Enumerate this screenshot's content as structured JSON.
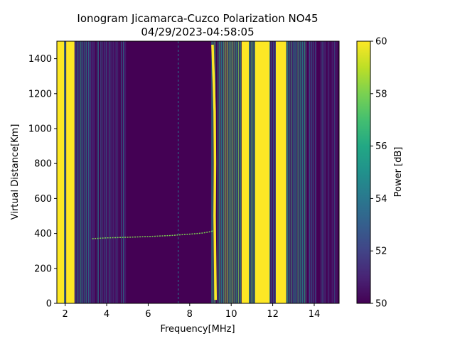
{
  "chart_data": {
    "type": "heatmap",
    "title_line1": "Ionogram Jicamarca-Cuzco Polarization NO45",
    "title_line2": "04/29/2023-04:58:05",
    "xlabel": "Frequency[MHz]",
    "ylabel": "Virtual Distance[Km]",
    "xlim": [
      1.6,
      15.2
    ],
    "ylim": [
      0,
      1500
    ],
    "xticks": [
      2,
      4,
      6,
      8,
      10,
      12,
      14
    ],
    "yticks": [
      0,
      200,
      400,
      600,
      800,
      1000,
      1200,
      1400
    ],
    "colorbar": {
      "label": "Power [dB]",
      "colormap": "viridis",
      "range": [
        50,
        60
      ],
      "ticks": [
        50,
        52,
        54,
        56,
        58,
        60
      ]
    },
    "background_level_db": 50,
    "interference_bands": [
      {
        "f_start": 1.6,
        "f_end": 1.95,
        "level_db": 60,
        "pattern": "solid"
      },
      {
        "f_start": 1.95,
        "f_end": 2.05,
        "level_db": 55,
        "pattern": "striped"
      },
      {
        "f_start": 2.05,
        "f_end": 2.45,
        "level_db": 60,
        "pattern": "solid"
      },
      {
        "f_start": 2.45,
        "f_end": 3.2,
        "level_db": 54,
        "pattern": "striped"
      },
      {
        "f_start": 3.2,
        "f_end": 4.9,
        "level_db": 52,
        "pattern": "striped"
      },
      {
        "f_start": 9.05,
        "f_end": 9.25,
        "level_db": 56,
        "pattern": "striped"
      },
      {
        "f_start": 9.35,
        "f_end": 10.5,
        "level_db": 57,
        "pattern": "striped"
      },
      {
        "f_start": 10.5,
        "f_end": 10.85,
        "level_db": 60,
        "pattern": "solid"
      },
      {
        "f_start": 10.85,
        "f_end": 11.15,
        "level_db": 55,
        "pattern": "striped"
      },
      {
        "f_start": 11.15,
        "f_end": 11.85,
        "level_db": 60,
        "pattern": "solid"
      },
      {
        "f_start": 11.85,
        "f_end": 12.15,
        "level_db": 54,
        "pattern": "striped"
      },
      {
        "f_start": 12.15,
        "f_end": 12.65,
        "level_db": 60,
        "pattern": "solid"
      },
      {
        "f_start": 12.65,
        "f_end": 13.6,
        "level_db": 55,
        "pattern": "striped"
      },
      {
        "f_start": 13.6,
        "f_end": 15.2,
        "level_db": 52,
        "pattern": "striped"
      }
    ],
    "echo_traces": [
      {
        "name_hidden": true,
        "level_db": 58,
        "points": [
          [
            3.3,
            370
          ],
          [
            4.0,
            375
          ],
          [
            5.0,
            378
          ],
          [
            6.0,
            382
          ],
          [
            7.0,
            388
          ],
          [
            8.0,
            396
          ],
          [
            8.6,
            402
          ],
          [
            9.0,
            410
          ],
          [
            9.2,
            418
          ]
        ]
      },
      {
        "name_hidden": true,
        "level_db": 60,
        "points": [
          [
            9.25,
            20
          ],
          [
            9.22,
            300
          ],
          [
            9.2,
            500
          ],
          [
            9.22,
            800
          ],
          [
            9.2,
            1100
          ],
          [
            9.15,
            1300
          ],
          [
            9.1,
            1480
          ]
        ]
      }
    ],
    "vertical_lines": [
      {
        "f": 7.45,
        "level_db": 54
      }
    ]
  }
}
